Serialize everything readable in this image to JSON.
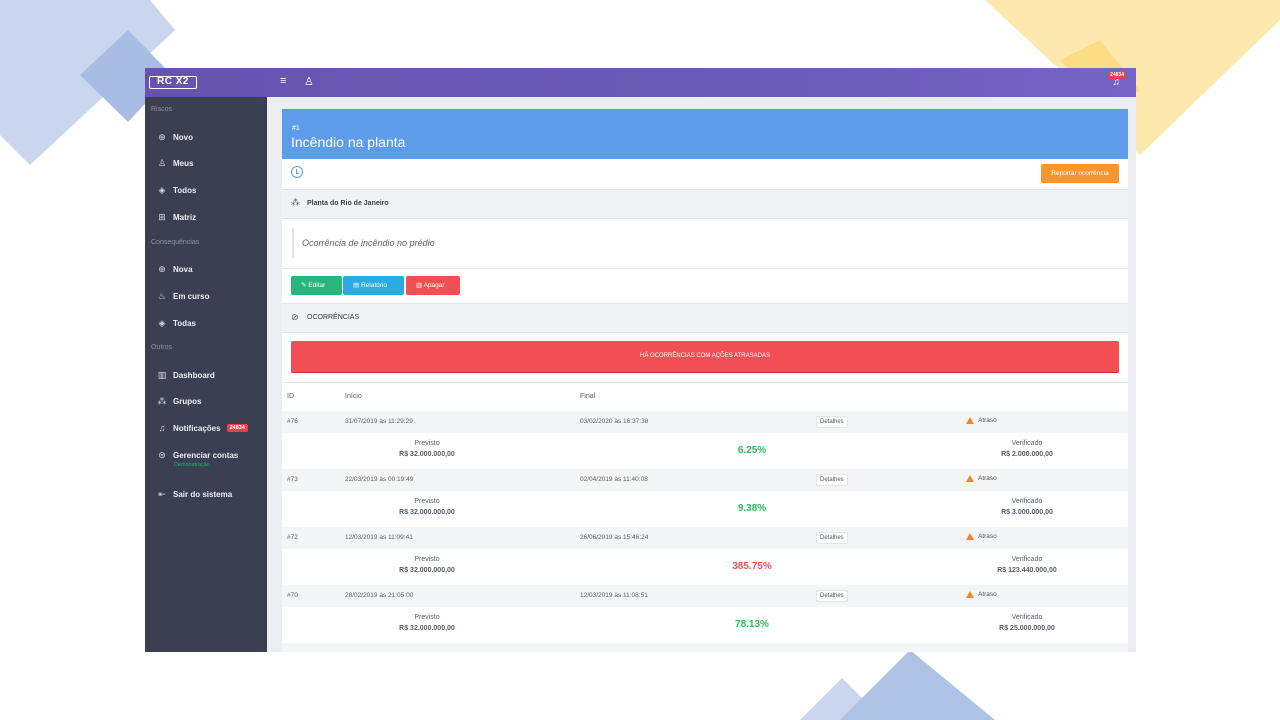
{
  "topbar": {
    "logo_text": "RC X2",
    "notification_count": "24834"
  },
  "sidebar": {
    "sections": [
      {
        "title": "Riscos",
        "items": [
          {
            "label": "Novo",
            "icon": "plus-circle-icon"
          },
          {
            "label": "Meus",
            "icon": "user-icon"
          },
          {
            "label": "Todos",
            "icon": "layers-icon"
          },
          {
            "label": "Matriz",
            "icon": "grid-icon"
          }
        ]
      },
      {
        "title": "Consequências",
        "items": [
          {
            "label": "Nova",
            "icon": "plus-circle-icon"
          },
          {
            "label": "Em curso",
            "icon": "fire-icon"
          },
          {
            "label": "Todas",
            "icon": "layers-icon"
          }
        ]
      },
      {
        "title": "Outros",
        "items": [
          {
            "label": "Dashboard",
            "icon": "chart-icon"
          },
          {
            "label": "Grupos",
            "icon": "group-icon"
          },
          {
            "label": "Notificações",
            "icon": "bell-icon",
            "badge": "24834"
          },
          {
            "label": "Gerenciar contas",
            "icon": "account-icon",
            "sub": "Demonstração"
          },
          {
            "label": "Sair do sistema",
            "icon": "logout-icon"
          }
        ]
      }
    ]
  },
  "risk": {
    "id": "#1",
    "title": "Incêndio na planta",
    "report_button": "Reportar ocorrência",
    "location": "Planta do Rio de Janeiro",
    "description": "Ocorrência de incêndio no prédio",
    "actions": {
      "edit": "Editar",
      "report": "Relatório",
      "delete": "Apagar"
    }
  },
  "occurrences": {
    "section_title": "OCORRÊNCIAS",
    "alert": "HÁ OCORRÊNCIAS COM AÇÕES ATRASADAS",
    "columns": [
      "ID",
      "Início",
      "Final"
    ],
    "details_label": "Detalhes",
    "predicted_label": "Previsto",
    "verified_label": "Verificado",
    "rows": [
      {
        "id": "#76",
        "start": "31/07/2019 às 11:29:29",
        "end": "03/02/2020 às 16:37:38",
        "status": "Atraso",
        "predicted": "R$ 32.000.000,00",
        "percent": "6.25%",
        "verified": "R$ 2.000.000,00",
        "percent_color": "#2dbb5d"
      },
      {
        "id": "#73",
        "start": "22/03/2019 às 00:19:49",
        "end": "02/04/2019 às 11:40:08",
        "status": "Atraso",
        "predicted": "R$ 32.000.000,00",
        "percent": "9.38%",
        "verified": "R$ 3.000.000,00",
        "percent_color": "#2dbb5d"
      },
      {
        "id": "#72",
        "start": "12/03/2019 às 11:09:41",
        "end": "26/06/2019 às 15:46:24",
        "status": "Atraso",
        "predicted": "R$ 32.000.000,00",
        "percent": "385.75%",
        "verified": "R$ 123.440.000,00",
        "percent_color": "#f14f53"
      },
      {
        "id": "#70",
        "start": "28/02/2019 às 21:05:00",
        "end": "12/03/2019 às 11:08:51",
        "status": "Atraso",
        "predicted": "R$ 32.000.000,00",
        "percent": "78.13%",
        "verified": "R$ 25.000.000,00",
        "percent_color": "#2dbb5d"
      }
    ]
  }
}
